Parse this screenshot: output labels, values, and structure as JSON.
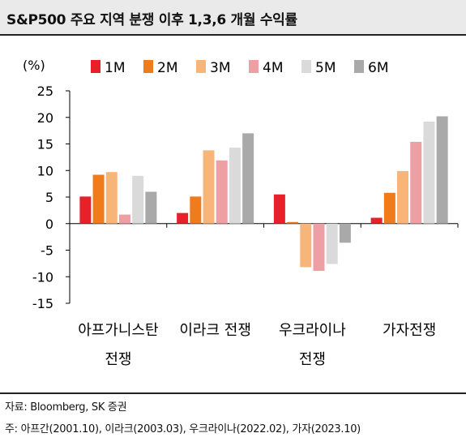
{
  "header": {
    "title": "S&P500 주요 지역 분쟁 이후 1,3,6 개월 수익률"
  },
  "chart_data": {
    "type": "bar",
    "unit_label": "(%)",
    "categories": [
      [
        "아프가니스탄",
        "전쟁"
      ],
      [
        "이라크 전쟁"
      ],
      [
        "우크라이나",
        "전쟁"
      ],
      [
        "가자전쟁"
      ]
    ],
    "series": [
      {
        "name": "1M",
        "color": "#e8202a",
        "values": [
          5.1,
          2.0,
          5.5,
          1.1
        ]
      },
      {
        "name": "2M",
        "color": "#f07b1a",
        "values": [
          9.2,
          5.1,
          0.3,
          5.8
        ]
      },
      {
        "name": "3M",
        "color": "#f8b57a",
        "values": [
          9.7,
          13.8,
          -8.2,
          9.9
        ]
      },
      {
        "name": "4M",
        "color": "#ee9fa3",
        "values": [
          1.7,
          11.9,
          -8.9,
          15.4
        ]
      },
      {
        "name": "5M",
        "color": "#dadada",
        "values": [
          9.0,
          14.3,
          -7.6,
          19.2
        ]
      },
      {
        "name": "6M",
        "color": "#a9a9a9",
        "values": [
          6.0,
          17.0,
          -3.6,
          20.2
        ]
      }
    ],
    "ylim": [
      -15,
      25
    ],
    "yticks": [
      25,
      20,
      15,
      10,
      5,
      0,
      -5,
      -10,
      -15
    ],
    "legend_position": "top",
    "grid": false
  },
  "footer": {
    "source": "자료: Bloomberg, SK 증권",
    "note": "주: 아프간(2001.10), 이라크(2003.03), 우크라이나(2022.02), 가자(2023.10)"
  }
}
